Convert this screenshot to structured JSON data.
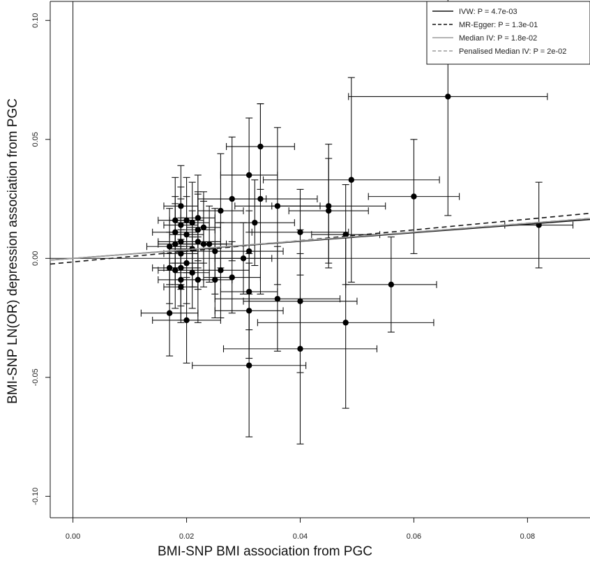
{
  "chart_data": {
    "type": "scatter",
    "xlabel": "BMI-SNP BMI association from PGC",
    "ylabel": "BMI-SNP LN(OR) depression association from PGC",
    "xlim": [
      -0.004,
      0.091
    ],
    "ylim": [
      -0.109,
      0.108
    ],
    "x_ticks": [
      "0.00",
      "0.02",
      "0.04",
      "0.06",
      "0.08"
    ],
    "y_ticks": [
      "-0.10",
      "-0.05",
      "0.00",
      "0.05",
      "0.10"
    ],
    "reference_lines": {
      "x": 0,
      "y": 0
    },
    "legend": {
      "position": "top-right",
      "entries": [
        {
          "label": "IVW: P = 4.7e-03",
          "style": "solid",
          "color": "#111111",
          "slope": 0.1795
        },
        {
          "label": "MR-Egger: P = 1.3e-01",
          "style": "dashed",
          "color": "#111111",
          "intercept": -0.0015,
          "slope": 0.2247
        },
        {
          "label": "Median IV: P = 1.8e-02",
          "style": "solid",
          "color": "#9a9a9a",
          "slope": 0.1842
        },
        {
          "label": "Penalised Median IV: P = 2e-02",
          "style": "dashed",
          "color": "#9a9a9a",
          "slope": 0.1852
        }
      ]
    },
    "points": [
      {
        "x": 0.066,
        "y": 0.068,
        "xerr": 0.0175,
        "yerr": 0.05
      },
      {
        "x": 0.082,
        "y": 0.014,
        "xerr": 0.006,
        "yerr": 0.018
      },
      {
        "x": 0.06,
        "y": 0.026,
        "xerr": 0.008,
        "yerr": 0.024
      },
      {
        "x": 0.056,
        "y": -0.011,
        "xerr": 0.008,
        "yerr": 0.02
      },
      {
        "x": 0.049,
        "y": 0.033,
        "xerr": 0.0155,
        "yerr": 0.043
      },
      {
        "x": 0.048,
        "y": 0.01,
        "xerr": 0.006,
        "yerr": 0.021
      },
      {
        "x": 0.048,
        "y": -0.027,
        "xerr": 0.0155,
        "yerr": 0.036
      },
      {
        "x": 0.045,
        "y": 0.022,
        "xerr": 0.01,
        "yerr": 0.026
      },
      {
        "x": 0.045,
        "y": 0.02,
        "xerr": 0.007,
        "yerr": 0.022
      },
      {
        "x": 0.04,
        "y": 0.011,
        "xerr": 0.0085,
        "yerr": 0.018
      },
      {
        "x": 0.04,
        "y": -0.018,
        "xerr": 0.01,
        "yerr": 0.03
      },
      {
        "x": 0.04,
        "y": -0.038,
        "xerr": 0.0135,
        "yerr": 0.04
      },
      {
        "x": 0.036,
        "y": 0.022,
        "xerr": 0.0075,
        "yerr": 0.033
      },
      {
        "x": 0.036,
        "y": -0.017,
        "xerr": 0.011,
        "yerr": 0.022
      },
      {
        "x": 0.033,
        "y": 0.047,
        "xerr": 0.006,
        "yerr": 0.018
      },
      {
        "x": 0.033,
        "y": 0.025,
        "xerr": 0.01,
        "yerr": 0.04
      },
      {
        "x": 0.032,
        "y": 0.015,
        "xerr": 0.007,
        "yerr": 0.018
      },
      {
        "x": 0.031,
        "y": 0.035,
        "xerr": 0.005,
        "yerr": 0.024
      },
      {
        "x": 0.031,
        "y": 0.003,
        "xerr": 0.006,
        "yerr": 0.017
      },
      {
        "x": 0.031,
        "y": -0.014,
        "xerr": 0.005,
        "yerr": 0.016
      },
      {
        "x": 0.031,
        "y": -0.022,
        "xerr": 0.006,
        "yerr": 0.02
      },
      {
        "x": 0.031,
        "y": -0.045,
        "xerr": 0.01,
        "yerr": 0.03
      },
      {
        "x": 0.03,
        "y": 0.0,
        "xerr": 0.005,
        "yerr": 0.015
      },
      {
        "x": 0.028,
        "y": 0.025,
        "xerr": 0.006,
        "yerr": 0.026
      },
      {
        "x": 0.028,
        "y": -0.008,
        "xerr": 0.005,
        "yerr": 0.015
      },
      {
        "x": 0.026,
        "y": 0.02,
        "xerr": 0.004,
        "yerr": 0.024
      },
      {
        "x": 0.026,
        "y": -0.005,
        "xerr": 0.005,
        "yerr": 0.02
      },
      {
        "x": 0.025,
        "y": 0.003,
        "xerr": 0.008,
        "yerr": 0.018
      },
      {
        "x": 0.025,
        "y": -0.009,
        "xerr": 0.003,
        "yerr": 0.016
      },
      {
        "x": 0.024,
        "y": 0.006,
        "xerr": 0.004,
        "yerr": 0.016
      },
      {
        "x": 0.023,
        "y": 0.013,
        "xerr": 0.003,
        "yerr": 0.015
      },
      {
        "x": 0.023,
        "y": 0.006,
        "xerr": 0.004,
        "yerr": 0.018
      },
      {
        "x": 0.022,
        "y": 0.017,
        "xerr": 0.003,
        "yerr": 0.018
      },
      {
        "x": 0.022,
        "y": 0.012,
        "xerr": 0.003,
        "yerr": 0.016
      },
      {
        "x": 0.022,
        "y": 0.007,
        "xerr": 0.004,
        "yerr": 0.02
      },
      {
        "x": 0.022,
        "y": -0.009,
        "xerr": 0.004,
        "yerr": 0.018
      },
      {
        "x": 0.021,
        "y": 0.015,
        "xerr": 0.003,
        "yerr": 0.017
      },
      {
        "x": 0.021,
        "y": 0.004,
        "xerr": 0.004,
        "yerr": 0.016
      },
      {
        "x": 0.021,
        "y": -0.006,
        "xerr": 0.003,
        "yerr": 0.015
      },
      {
        "x": 0.02,
        "y": 0.016,
        "xerr": 0.003,
        "yerr": 0.018
      },
      {
        "x": 0.02,
        "y": 0.01,
        "xerr": 0.003,
        "yerr": 0.016
      },
      {
        "x": 0.02,
        "y": -0.002,
        "xerr": 0.003,
        "yerr": 0.017
      },
      {
        "x": 0.02,
        "y": -0.026,
        "xerr": 0.006,
        "yerr": 0.018
      },
      {
        "x": 0.019,
        "y": 0.022,
        "xerr": 0.003,
        "yerr": 0.017
      },
      {
        "x": 0.019,
        "y": 0.014,
        "xerr": 0.003,
        "yerr": 0.016
      },
      {
        "x": 0.019,
        "y": 0.007,
        "xerr": 0.004,
        "yerr": 0.018
      },
      {
        "x": 0.019,
        "y": 0.002,
        "xerr": 0.003,
        "yerr": 0.015
      },
      {
        "x": 0.019,
        "y": -0.004,
        "xerr": 0.003,
        "yerr": 0.016
      },
      {
        "x": 0.019,
        "y": -0.009,
        "xerr": 0.004,
        "yerr": 0.017
      },
      {
        "x": 0.019,
        "y": -0.012,
        "xerr": 0.003,
        "yerr": 0.015
      },
      {
        "x": 0.018,
        "y": 0.016,
        "xerr": 0.003,
        "yerr": 0.018
      },
      {
        "x": 0.018,
        "y": 0.011,
        "xerr": 0.004,
        "yerr": 0.015
      },
      {
        "x": 0.018,
        "y": 0.006,
        "xerr": 0.003,
        "yerr": 0.017
      },
      {
        "x": 0.018,
        "y": -0.005,
        "xerr": 0.003,
        "yerr": 0.016
      },
      {
        "x": 0.017,
        "y": 0.005,
        "xerr": 0.004,
        "yerr": 0.016
      },
      {
        "x": 0.017,
        "y": -0.004,
        "xerr": 0.003,
        "yerr": 0.015
      },
      {
        "x": 0.017,
        "y": -0.023,
        "xerr": 0.005,
        "yerr": 0.018
      }
    ]
  }
}
